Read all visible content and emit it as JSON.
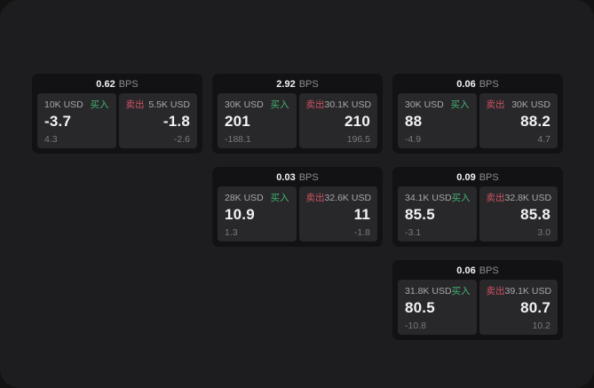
{
  "labels": {
    "bps_unit": "BPS",
    "buy": "买入",
    "sell": "卖出"
  },
  "colors": {
    "bg_outer": "#131314",
    "bg_app": "#1d1d1f",
    "card_bg": "#121214",
    "panel_bg": "#28282b",
    "bright": "#f2f2f4",
    "muted": "#8d8d90",
    "label": "#a8a8ab",
    "sub": "#7a7a7d",
    "buy_green": "#42b471",
    "sell_red": "#cf5260"
  },
  "cards": [
    {
      "bps": "0.62",
      "buy": {
        "size": "10K USD",
        "price": "-3.7",
        "sub": "4.3"
      },
      "sell": {
        "size": "5.5K USD",
        "price": "-1.8",
        "sub": "-2.6"
      }
    },
    {
      "bps": "2.92",
      "buy": {
        "size": "30K USD",
        "price": "201",
        "sub": "-188.1"
      },
      "sell": {
        "size": "30.1K USD",
        "price": "210",
        "sub": "196.5"
      }
    },
    {
      "bps": "0.06",
      "buy": {
        "size": "30K USD",
        "price": "88",
        "sub": "-4.9"
      },
      "sell": {
        "size": "30K USD",
        "price": "88.2",
        "sub": "4.7"
      }
    },
    {
      "bps": "0.03",
      "buy": {
        "size": "28K USD",
        "price": "10.9",
        "sub": "1.3"
      },
      "sell": {
        "size": "32.6K USD",
        "price": "11",
        "sub": "-1.8"
      }
    },
    {
      "bps": "0.09",
      "buy": {
        "size": "34.1K USD",
        "price": "85.5",
        "sub": "-3.1"
      },
      "sell": {
        "size": "32.8K USD",
        "price": "85.8",
        "sub": "3.0"
      }
    },
    {
      "bps": "0.06",
      "buy": {
        "size": "31.8K USD",
        "price": "80.5",
        "sub": "-10.8"
      },
      "sell": {
        "size": "39.1K USD",
        "price": "80.7",
        "sub": "10.2"
      }
    }
  ]
}
